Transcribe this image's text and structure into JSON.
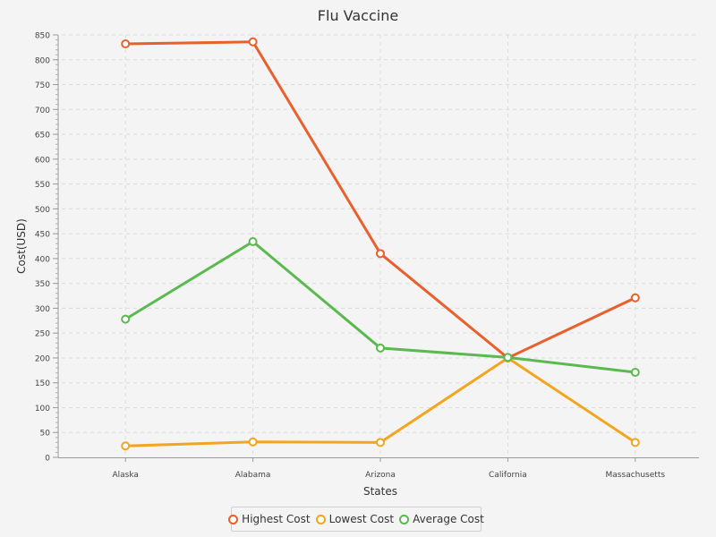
{
  "chart_data": {
    "type": "line",
    "title": "Flu Vaccine",
    "xlabel": "States",
    "ylabel": "Cost(USD)",
    "categories": [
      "Alaska",
      "Alabama",
      "Arizona",
      "California",
      "Massachusetts"
    ],
    "ylim": [
      0,
      850
    ],
    "yticks": [
      0,
      50,
      100,
      150,
      200,
      250,
      300,
      350,
      400,
      450,
      500,
      550,
      600,
      650,
      700,
      750,
      800,
      850
    ],
    "grid": true,
    "legend_position": "bottom",
    "series": [
      {
        "name": "Highest Cost",
        "color": "#e8602c",
        "values": [
          832,
          836,
          410,
          200,
          321
        ]
      },
      {
        "name": "Lowest Cost",
        "color": "#f2a51f",
        "values": [
          23,
          31,
          30,
          200,
          30
        ]
      },
      {
        "name": "Average Cost",
        "color": "#5ab94f",
        "values": [
          278,
          434,
          220,
          201,
          171
        ]
      }
    ]
  }
}
